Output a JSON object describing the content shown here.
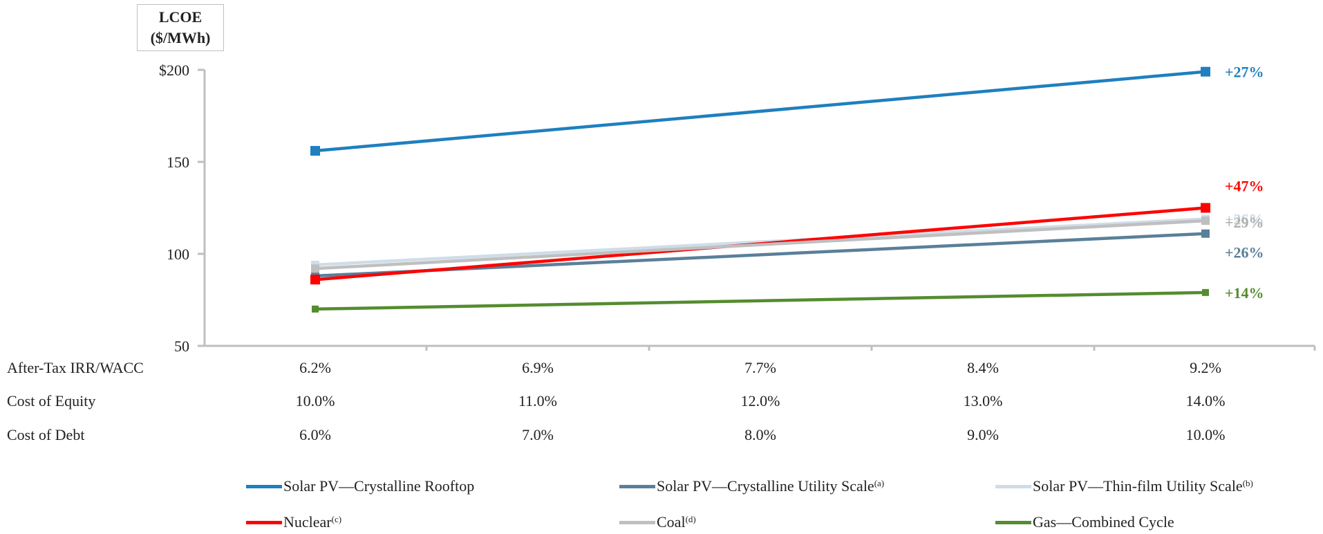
{
  "chart_data": {
    "type": "line",
    "ylabel_lines": [
      "LCOE",
      "($/MWh)"
    ],
    "y_ticks": [
      "$200",
      "150",
      "100",
      "50"
    ],
    "y_tick_values": [
      200,
      150,
      100,
      50
    ],
    "ylim": [
      50,
      200
    ],
    "x_rows": [
      {
        "label": "After-Tax IRR/WACC",
        "values": [
          "6.2%",
          "6.9%",
          "7.7%",
          "8.4%",
          "9.2%"
        ]
      },
      {
        "label": "Cost of Equity",
        "values": [
          "10.0%",
          "11.0%",
          "12.0%",
          "13.0%",
          "14.0%"
        ]
      },
      {
        "label": "Cost of Debt",
        "values": [
          "6.0%",
          "7.0%",
          "8.0%",
          "9.0%",
          "10.0%"
        ]
      }
    ],
    "series": [
      {
        "name": "Solar PV—Crystalline Rooftop",
        "note": "",
        "color": "#1f7fbf",
        "marker": "square-large",
        "x_start": "6.2%",
        "x_end": "9.2%",
        "y_start": 156,
        "y_end": 199,
        "end_label": "+27%",
        "label_color": "#1f7fbf"
      },
      {
        "name": "Solar PV—Crystalline Utility Scale",
        "note": "(a)",
        "color": "#5a7f99",
        "marker": "square",
        "x_start": "6.2%",
        "x_end": "9.2%",
        "y_start": 88,
        "y_end": 111,
        "end_label": "+26%",
        "label_color": "#5a7f99"
      },
      {
        "name": "Solar PV—Thin-film Utility Scale",
        "note": "(b)",
        "color": "#cfdde8",
        "marker": "square",
        "x_start": "6.2%",
        "x_end": "9.2%",
        "y_start": 94,
        "y_end": 119,
        "end_label": "+26%",
        "label_color": "#c5d6e4"
      },
      {
        "name": "Nuclear",
        "note": "(c)",
        "color": "#ff0000",
        "marker": "square-large",
        "x_start": "6.2%",
        "x_end": "9.2%",
        "y_start": 86,
        "y_end": 125,
        "end_label": "+47%",
        "label_color": "#ff0000"
      },
      {
        "name": "Coal",
        "note": "(d)",
        "color": "#bfbfbf",
        "marker": "square",
        "x_start": "6.2%",
        "x_end": "9.2%",
        "y_start": 92,
        "y_end": 118,
        "end_label": "+29%",
        "label_color": "#b0b0b0"
      },
      {
        "name": "Gas—Combined Cycle",
        "note": "",
        "color": "#548c2f",
        "marker": "square-small",
        "x_start": "6.2%",
        "x_end": "9.2%",
        "y_start": 70,
        "y_end": 79,
        "end_label": "+14%",
        "label_color": "#548c2f"
      }
    ]
  }
}
